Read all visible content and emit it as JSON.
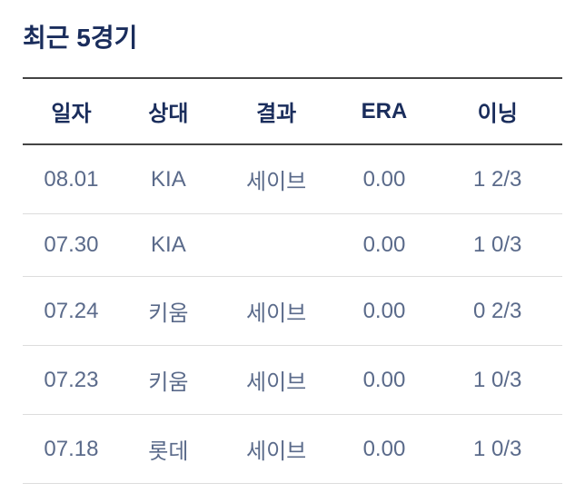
{
  "title": "최근 5경기",
  "table": {
    "columns": [
      "일자",
      "상대",
      "결과",
      "ERA",
      "이닝"
    ],
    "rows": [
      {
        "date": "08.01",
        "opponent": "KIA",
        "result": "세이브",
        "era": "0.00",
        "innings": "1 2/3"
      },
      {
        "date": "07.30",
        "opponent": "KIA",
        "result": "",
        "era": "0.00",
        "innings": "1 0/3"
      },
      {
        "date": "07.24",
        "opponent": "키움",
        "result": "세이브",
        "era": "0.00",
        "innings": "0 2/3"
      },
      {
        "date": "07.23",
        "opponent": "키움",
        "result": "세이브",
        "era": "0.00",
        "innings": "1 0/3"
      },
      {
        "date": "07.18",
        "opponent": "롯데",
        "result": "세이브",
        "era": "0.00",
        "innings": "1 0/3"
      }
    ]
  },
  "colors": {
    "heading_text": "#1a2d5c",
    "cell_text": "#5a6a8a",
    "header_border": "#444444",
    "row_border": "#dddddd",
    "background": "#ffffff"
  },
  "typography": {
    "title_fontsize": 28,
    "header_fontsize": 24,
    "cell_fontsize": 24
  }
}
